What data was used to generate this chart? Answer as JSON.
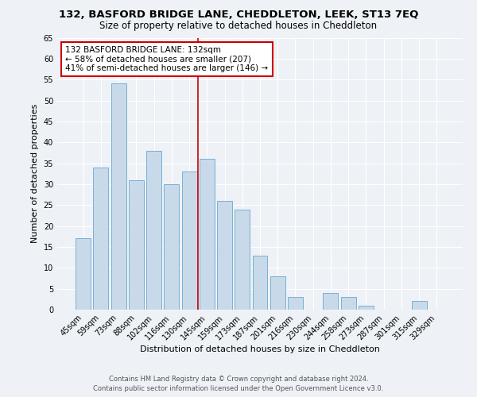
{
  "title": "132, BASFORD BRIDGE LANE, CHEDDLETON, LEEK, ST13 7EQ",
  "subtitle": "Size of property relative to detached houses in Cheddleton",
  "xlabel": "Distribution of detached houses by size in Cheddleton",
  "ylabel": "Number of detached properties",
  "bar_labels": [
    "45sqm",
    "59sqm",
    "73sqm",
    "88sqm",
    "102sqm",
    "116sqm",
    "130sqm",
    "145sqm",
    "159sqm",
    "173sqm",
    "187sqm",
    "201sqm",
    "216sqm",
    "230sqm",
    "244sqm",
    "258sqm",
    "273sqm",
    "287sqm",
    "301sqm",
    "315sqm",
    "329sqm"
  ],
  "bar_values": [
    17,
    34,
    54,
    31,
    38,
    30,
    33,
    36,
    26,
    24,
    13,
    8,
    3,
    0,
    4,
    3,
    1,
    0,
    0,
    2,
    0
  ],
  "bar_color": "#c8daea",
  "bar_edge_color": "#7aafd4",
  "highlight_line_index": 6.5,
  "annotation_title": "132 BASFORD BRIDGE LANE: 132sqm",
  "annotation_line1": "← 58% of detached houses are smaller (207)",
  "annotation_line2": "41% of semi-detached houses are larger (146) →",
  "annotation_box_facecolor": "#ffffff",
  "annotation_box_edgecolor": "#cc0000",
  "highlight_line_color": "#cc0000",
  "ylim": [
    0,
    65
  ],
  "yticks": [
    0,
    5,
    10,
    15,
    20,
    25,
    30,
    35,
    40,
    45,
    50,
    55,
    60,
    65
  ],
  "footer1": "Contains HM Land Registry data © Crown copyright and database right 2024.",
  "footer2": "Contains public sector information licensed under the Open Government Licence v3.0.",
  "bg_color": "#eef2f7",
  "title_fontsize": 9.5,
  "subtitle_fontsize": 8.5,
  "axis_label_fontsize": 8,
  "tick_fontsize": 7,
  "annotation_fontsize": 7.5,
  "footer_fontsize": 6
}
